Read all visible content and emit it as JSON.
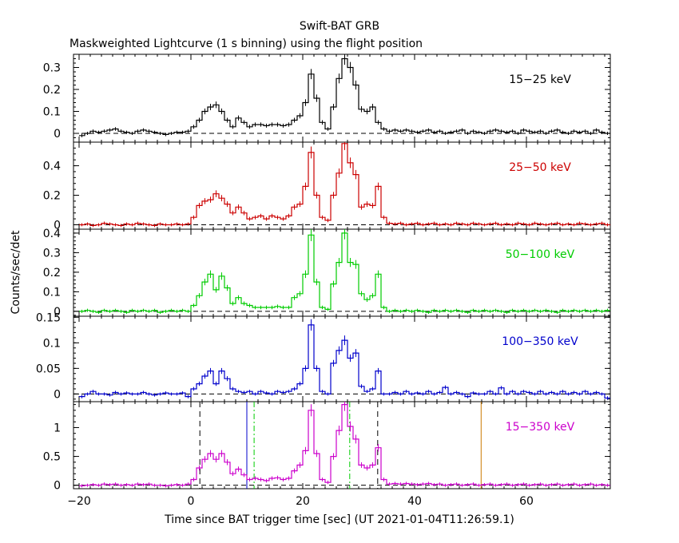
{
  "chart_data": {
    "type": "line",
    "title": "Swift-BAT GRB",
    "subtitle": "Maskweighted Lightcurve (1 s binning) using the flight position",
    "xlabel": "Time since BAT trigger time [sec] (UT 2021-01-04T11:26:59.1)",
    "ylabel": "Counts/sec/det",
    "xlim": [
      -21,
      75
    ],
    "x_ticks": [
      -20,
      0,
      20,
      40,
      60
    ],
    "x_tick_labels": [
      "−20",
      "0",
      "20",
      "40",
      "60"
    ],
    "grid": false,
    "panels": [
      {
        "label": "15−25 keV",
        "color": "#000000",
        "ylim": [
          -0.04,
          0.36
        ],
        "y_ticks": [
          0,
          0.1,
          0.2,
          0.3
        ],
        "y_tick_labels": [
          "0",
          "0.1",
          "0.2",
          "0.3"
        ],
        "x": [
          -20,
          -19,
          -18,
          -17,
          -16,
          -15,
          -14,
          -13,
          -12,
          -11,
          -10,
          -9,
          -8,
          -7,
          -6,
          -5,
          -4,
          -3,
          -2,
          -1,
          0,
          1,
          2,
          3,
          4,
          5,
          6,
          7,
          8,
          9,
          10,
          11,
          12,
          13,
          14,
          15,
          16,
          17,
          18,
          19,
          20,
          21,
          22,
          23,
          24,
          25,
          26,
          27,
          28,
          29,
          30,
          31,
          32,
          33,
          34,
          35,
          36,
          37,
          38,
          39,
          40,
          41,
          42,
          43,
          44,
          45,
          46,
          47,
          48,
          49,
          50,
          51,
          52,
          53,
          54,
          55,
          56,
          57,
          58,
          59,
          60,
          61,
          62,
          63,
          64,
          65,
          66,
          67,
          68,
          69,
          70,
          71,
          72,
          73,
          74
        ],
        "values": [
          -0.01,
          0.0,
          0.01,
          0.005,
          0.01,
          0.015,
          0.02,
          0.01,
          0.005,
          0.0,
          0.01,
          0.015,
          0.01,
          0.005,
          0.0,
          -0.005,
          0.0,
          0.005,
          0.005,
          0.01,
          0.03,
          0.06,
          0.1,
          0.12,
          0.13,
          0.1,
          0.06,
          0.03,
          0.07,
          0.05,
          0.03,
          0.04,
          0.04,
          0.035,
          0.04,
          0.04,
          0.035,
          0.04,
          0.06,
          0.08,
          0.14,
          0.27,
          0.16,
          0.05,
          0.02,
          0.12,
          0.25,
          0.34,
          0.3,
          0.22,
          0.11,
          0.1,
          0.12,
          0.05,
          0.02,
          0.01,
          0.015,
          0.01,
          0.015,
          0.01,
          0.005,
          0.01,
          0.015,
          0.005,
          0.01,
          0.0,
          0.005,
          0.01,
          0.015,
          0.0,
          0.01,
          0.005,
          0.0,
          0.01,
          0.015,
          0.01,
          0.005,
          0.01,
          0.0,
          0.015,
          0.01,
          0.005,
          0.01,
          0.0,
          0.01,
          0.015,
          0.005,
          0.0,
          0.01,
          0.005,
          0.01,
          0.0,
          0.015,
          0.005,
          0.0
        ]
      },
      {
        "label": "25−50 keV",
        "color": "#cc0000",
        "ylim": [
          -0.03,
          0.56
        ],
        "y_ticks": [
          0,
          0.2,
          0.4
        ],
        "y_tick_labels": [
          "0",
          "0.2",
          "0.4"
        ],
        "x": [
          -20,
          -19,
          -18,
          -17,
          -16,
          -15,
          -14,
          -13,
          -12,
          -11,
          -10,
          -9,
          -8,
          -7,
          -6,
          -5,
          -4,
          -3,
          -2,
          -1,
          0,
          1,
          2,
          3,
          4,
          5,
          6,
          7,
          8,
          9,
          10,
          11,
          12,
          13,
          14,
          15,
          16,
          17,
          18,
          19,
          20,
          21,
          22,
          23,
          24,
          25,
          26,
          27,
          28,
          29,
          30,
          31,
          32,
          33,
          34,
          35,
          36,
          37,
          38,
          39,
          40,
          41,
          42,
          43,
          44,
          45,
          46,
          47,
          48,
          49,
          50,
          51,
          52,
          53,
          54,
          55,
          56,
          57,
          58,
          59,
          60,
          61,
          62,
          63,
          64,
          65,
          66,
          67,
          68,
          69,
          70,
          71,
          72,
          73,
          74
        ],
        "values": [
          0.0,
          0.005,
          -0.005,
          0.0,
          0.01,
          0.005,
          0.0,
          -0.005,
          0.005,
          0.0,
          0.01,
          0.005,
          0.0,
          -0.005,
          0.005,
          0.0,
          0.0,
          0.005,
          0.0,
          0.005,
          0.05,
          0.13,
          0.16,
          0.17,
          0.21,
          0.18,
          0.14,
          0.08,
          0.12,
          0.08,
          0.04,
          0.05,
          0.06,
          0.04,
          0.06,
          0.05,
          0.04,
          0.06,
          0.12,
          0.14,
          0.26,
          0.49,
          0.2,
          0.05,
          0.03,
          0.2,
          0.35,
          0.55,
          0.42,
          0.34,
          0.12,
          0.14,
          0.13,
          0.26,
          0.05,
          0.01,
          0.005,
          0.01,
          0.0,
          0.005,
          0.01,
          0.0,
          0.005,
          0.01,
          0.0,
          0.005,
          0.0,
          0.01,
          0.005,
          0.0,
          0.01,
          0.005,
          0.0,
          0.005,
          0.01,
          0.0,
          0.005,
          0.0,
          0.01,
          0.005,
          0.0,
          0.01,
          0.005,
          0.0,
          0.005,
          0.01,
          0.0,
          0.005,
          0.0,
          0.01,
          0.005,
          0.0,
          0.005,
          0.01,
          0.0
        ]
      },
      {
        "label": "50−100 keV",
        "color": "#00cc00",
        "ylim": [
          -0.025,
          0.42
        ],
        "y_ticks": [
          0,
          0.1,
          0.2,
          0.3,
          0.4
        ],
        "y_tick_labels": [
          "0",
          "0.1",
          "0.2",
          "0.3",
          "0.4"
        ],
        "x": [
          -20,
          -19,
          -18,
          -17,
          -16,
          -15,
          -14,
          -13,
          -12,
          -11,
          -10,
          -9,
          -8,
          -7,
          -6,
          -5,
          -4,
          -3,
          -2,
          -1,
          0,
          1,
          2,
          3,
          4,
          5,
          6,
          7,
          8,
          9,
          10,
          11,
          12,
          13,
          14,
          15,
          16,
          17,
          18,
          19,
          20,
          21,
          22,
          23,
          24,
          25,
          26,
          27,
          28,
          29,
          30,
          31,
          32,
          33,
          34,
          35,
          36,
          37,
          38,
          39,
          40,
          41,
          42,
          43,
          44,
          45,
          46,
          47,
          48,
          49,
          50,
          51,
          52,
          53,
          54,
          55,
          56,
          57,
          58,
          59,
          60,
          61,
          62,
          63,
          64,
          65,
          66,
          67,
          68,
          69,
          70,
          71,
          72,
          73,
          74
        ],
        "values": [
          0.0,
          0.005,
          0.0,
          -0.005,
          0.005,
          0.0,
          0.005,
          0.0,
          -0.005,
          0.005,
          0.0,
          0.005,
          0.0,
          0.005,
          -0.005,
          0.0,
          0.005,
          0.0,
          0.005,
          0.0,
          0.03,
          0.08,
          0.15,
          0.19,
          0.11,
          0.18,
          0.12,
          0.04,
          0.07,
          0.04,
          0.03,
          0.02,
          0.02,
          0.02,
          0.02,
          0.025,
          0.02,
          0.02,
          0.07,
          0.09,
          0.19,
          0.39,
          0.15,
          0.02,
          0.01,
          0.14,
          0.25,
          0.4,
          0.25,
          0.24,
          0.09,
          0.06,
          0.08,
          0.19,
          0.02,
          0.0,
          0.005,
          0.0,
          0.005,
          0.0,
          0.005,
          0.0,
          -0.005,
          0.005,
          0.0,
          0.005,
          0.0,
          0.005,
          0.0,
          -0.005,
          0.005,
          0.0,
          0.005,
          0.0,
          0.005,
          0.0,
          -0.005,
          0.005,
          0.0,
          0.005,
          0.0,
          0.005,
          0.0,
          0.005,
          0.0,
          -0.005,
          0.005,
          0.0,
          0.005,
          0.0,
          0.005,
          0.0,
          0.005,
          0.0,
          0.005
        ]
      },
      {
        "label": "100−350 keV",
        "color": "#0000cc",
        "ylim": [
          -0.015,
          0.152
        ],
        "y_ticks": [
          0,
          0.05,
          0.1,
          0.15
        ],
        "y_tick_labels": [
          "0",
          "0.05",
          "0.1",
          "0.15"
        ],
        "x": [
          -20,
          -19,
          -18,
          -17,
          -16,
          -15,
          -14,
          -13,
          -12,
          -11,
          -10,
          -9,
          -8,
          -7,
          -6,
          -5,
          -4,
          -3,
          -2,
          -1,
          0,
          1,
          2,
          3,
          4,
          5,
          6,
          7,
          8,
          9,
          10,
          11,
          12,
          13,
          14,
          15,
          16,
          17,
          18,
          19,
          20,
          21,
          22,
          23,
          24,
          25,
          26,
          27,
          28,
          29,
          30,
          31,
          32,
          33,
          34,
          35,
          36,
          37,
          38,
          39,
          40,
          41,
          42,
          43,
          44,
          45,
          46,
          47,
          48,
          49,
          50,
          51,
          52,
          53,
          54,
          55,
          56,
          57,
          58,
          59,
          60,
          61,
          62,
          63,
          64,
          65,
          66,
          67,
          68,
          69,
          70,
          71,
          72,
          73,
          74
        ],
        "values": [
          -0.005,
          0.0,
          0.005,
          0.0,
          0.0,
          -0.002,
          0.003,
          0.0,
          0.002,
          0.0,
          0.0,
          0.003,
          0.0,
          -0.002,
          0.0,
          0.002,
          0.0,
          0.0,
          0.002,
          -0.005,
          0.01,
          0.02,
          0.035,
          0.045,
          0.02,
          0.045,
          0.03,
          0.01,
          0.005,
          0.003,
          0.005,
          0.0,
          0.005,
          0.002,
          0.0,
          0.005,
          0.003,
          0.005,
          0.01,
          0.02,
          0.05,
          0.135,
          0.05,
          0.005,
          0.0,
          0.06,
          0.085,
          0.105,
          0.07,
          0.08,
          0.015,
          0.005,
          0.01,
          0.045,
          0.0,
          0.0,
          0.003,
          0.0,
          0.005,
          0.0,
          0.002,
          0.0,
          0.005,
          0.0,
          0.003,
          0.013,
          0.0,
          0.003,
          0.0,
          -0.005,
          0.002,
          0.0,
          0.0,
          0.005,
          0.0,
          0.012,
          0.0,
          0.005,
          0.0,
          0.005,
          0.003,
          0.0,
          0.005,
          0.0,
          0.003,
          0.0,
          0.005,
          0.0,
          0.003,
          0.0,
          0.005,
          0.0,
          0.003,
          0.0,
          -0.008
        ]
      },
      {
        "label": "15−350 keV",
        "color": "#cc00cc",
        "ylim": [
          -0.06,
          1.45
        ],
        "y_ticks": [
          0,
          0.5,
          1
        ],
        "y_tick_labels": [
          "0",
          "0.5",
          "1"
        ],
        "x": [
          -20,
          -19,
          -18,
          -17,
          -16,
          -15,
          -14,
          -13,
          -12,
          -11,
          -10,
          -9,
          -8,
          -7,
          -6,
          -5,
          -4,
          -3,
          -2,
          -1,
          0,
          1,
          2,
          3,
          4,
          5,
          6,
          7,
          8,
          9,
          10,
          11,
          12,
          13,
          14,
          15,
          16,
          17,
          18,
          19,
          20,
          21,
          22,
          23,
          24,
          25,
          26,
          27,
          28,
          29,
          30,
          31,
          32,
          33,
          34,
          35,
          36,
          37,
          38,
          39,
          40,
          41,
          42,
          43,
          44,
          45,
          46,
          47,
          48,
          49,
          50,
          51,
          52,
          53,
          54,
          55,
          56,
          57,
          58,
          59,
          60,
          61,
          62,
          63,
          64,
          65,
          66,
          67,
          68,
          69,
          70,
          71,
          72,
          73,
          74
        ],
        "values": [
          -0.01,
          0.0,
          0.01,
          0.0,
          0.02,
          0.01,
          0.02,
          0.0,
          0.01,
          0.0,
          0.02,
          0.01,
          0.02,
          0.0,
          0.0,
          -0.01,
          0.0,
          0.01,
          0.0,
          0.02,
          0.1,
          0.3,
          0.45,
          0.55,
          0.45,
          0.55,
          0.4,
          0.2,
          0.28,
          0.18,
          0.1,
          0.12,
          0.1,
          0.08,
          0.12,
          0.13,
          0.1,
          0.12,
          0.25,
          0.35,
          0.6,
          1.3,
          0.55,
          0.1,
          0.05,
          0.5,
          0.95,
          1.4,
          1.02,
          0.8,
          0.35,
          0.3,
          0.35,
          0.65,
          0.1,
          0.02,
          0.03,
          0.02,
          0.03,
          0.02,
          0.01,
          0.02,
          0.03,
          0.01,
          0.02,
          0.0,
          0.01,
          0.02,
          0.0,
          0.01,
          0.02,
          0.0,
          0.01,
          0.02,
          0.0,
          0.01,
          0.02,
          0.0,
          0.01,
          0.02,
          0.0,
          0.01,
          0.02,
          0.0,
          0.01,
          0.02,
          0.0,
          0.01,
          0.02,
          0.0,
          0.01,
          0.02,
          0.0,
          0.01,
          0.0
        ]
      }
    ],
    "markers": [
      {
        "x": 1.6,
        "style": "dashed",
        "color": "#000000"
      },
      {
        "x": 33.4,
        "style": "dashed",
        "color": "#000000"
      },
      {
        "x": 10.0,
        "style": "solid",
        "color": "#0000cc"
      },
      {
        "x": 11.3,
        "style": "dashdot",
        "color": "#00cc00"
      },
      {
        "x": 28.4,
        "style": "dashdot",
        "color": "#00cc00"
      },
      {
        "x": 51.9,
        "style": "solid",
        "color": "#cc7a00"
      }
    ]
  }
}
